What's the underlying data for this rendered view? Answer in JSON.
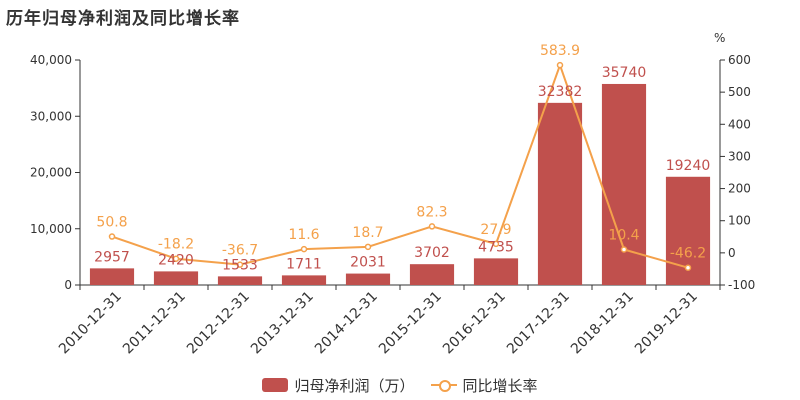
{
  "title": "历年归母净利润及同比增长率",
  "chart_data": {
    "type": "bar",
    "title": "历年归母净利润及同比增长率",
    "categories": [
      "2010-12-31",
      "2011-12-31",
      "2012-12-31",
      "2013-12-31",
      "2014-12-31",
      "2015-12-31",
      "2016-12-31",
      "2017-12-31",
      "2018-12-31",
      "2019-12-31"
    ],
    "series": [
      {
        "name": "归母净利润（万）",
        "type": "bar",
        "axis": "left",
        "color": "#c0504d",
        "values": [
          2957,
          2420,
          1533,
          1711,
          2031,
          3702,
          4735,
          32382,
          35740,
          19240
        ]
      },
      {
        "name": "同比增长率",
        "type": "line",
        "axis": "right",
        "color": "#f4a14b",
        "values": [
          50.8,
          -18.2,
          -36.7,
          11.6,
          18.7,
          82.3,
          27.9,
          583.9,
          10.4,
          -46.2
        ]
      }
    ],
    "y_left": {
      "ticks": [
        "0",
        "10,000",
        "20,000",
        "30,000",
        "40,000"
      ],
      "ylim": [
        0,
        40000
      ]
    },
    "y_right": {
      "label": "%",
      "ticks": [
        "-100",
        "0",
        "100",
        "200",
        "300",
        "400",
        "500",
        "600"
      ],
      "ylim": [
        -100,
        600
      ]
    },
    "bar_labels": [
      "2957",
      "2420",
      "1533",
      "1711",
      "2031",
      "3702",
      "4735",
      "32382",
      "35740",
      "19240"
    ],
    "line_labels": [
      "50.8",
      "-18.2",
      "-36.7",
      "11.6",
      "18.7",
      "82.3",
      "27.9",
      "583.9",
      "10.4",
      "-46.2"
    ],
    "legend_position": "bottom"
  },
  "legend": {
    "bar": "归母净利润（万）",
    "line": "同比增长率"
  }
}
